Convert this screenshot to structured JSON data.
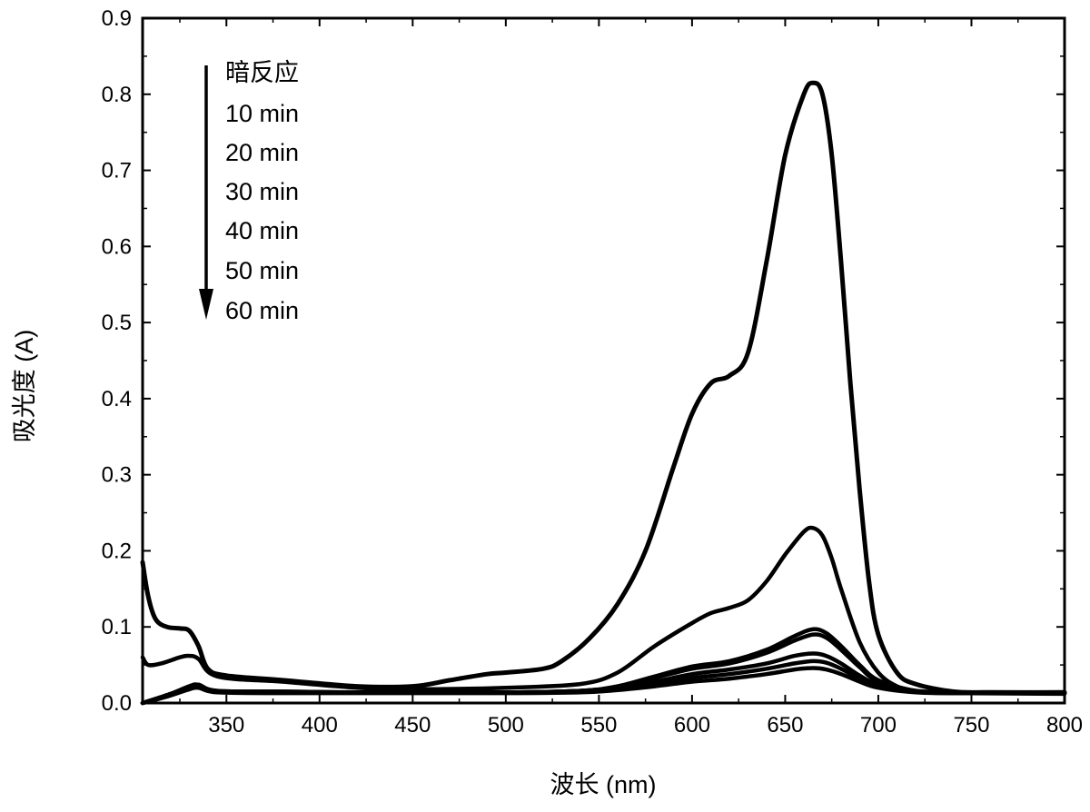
{
  "chart_data": {
    "type": "line",
    "title": "",
    "xlabel": "波长 (nm)",
    "ylabel": "吸光度 (A)",
    "xlim": [
      305,
      800
    ],
    "ylim": [
      0,
      0.9
    ],
    "x_ticks": [
      350,
      400,
      450,
      500,
      550,
      600,
      650,
      700,
      750,
      800
    ],
    "x_tick_labels": [
      "350",
      "400",
      "450",
      "500",
      "550",
      "600",
      "650",
      "700",
      "750",
      "800"
    ],
    "y_ticks": [
      0.0,
      0.1,
      0.2,
      0.3,
      0.4,
      0.5,
      0.6,
      0.7,
      0.8,
      0.9
    ],
    "y_tick_labels": [
      "0.0",
      "0.1",
      "0.2",
      "0.3",
      "0.4",
      "0.5",
      "0.6",
      "0.7",
      "0.8",
      "0.9"
    ],
    "grid": false,
    "legend": {
      "placement": "top-left",
      "arrow": "down",
      "entries": [
        "暗反应",
        "10 min",
        "20 min",
        "30 min",
        "40 min",
        "50 min",
        "60 min"
      ]
    },
    "line_color": "#000000",
    "series": [
      {
        "name": "暗反应",
        "x": [
          305,
          308,
          312,
          318,
          325,
          330,
          335,
          340,
          350,
          380,
          420,
          450,
          470,
          490,
          500,
          520,
          530,
          545,
          560,
          575,
          590,
          600,
          610,
          620,
          630,
          640,
          650,
          660,
          665,
          670,
          675,
          680,
          685,
          690,
          695,
          700,
          710,
          720,
          740,
          760,
          800
        ],
        "y": [
          0.185,
          0.14,
          0.11,
          0.1,
          0.098,
          0.095,
          0.075,
          0.045,
          0.036,
          0.03,
          0.022,
          0.022,
          0.03,
          0.038,
          0.04,
          0.045,
          0.055,
          0.085,
          0.13,
          0.2,
          0.31,
          0.38,
          0.42,
          0.43,
          0.46,
          0.58,
          0.72,
          0.8,
          0.815,
          0.8,
          0.72,
          0.58,
          0.42,
          0.28,
          0.16,
          0.09,
          0.04,
          0.025,
          0.015,
          0.014,
          0.014
        ]
      },
      {
        "name": "10 min",
        "x": [
          305,
          308,
          315,
          325,
          330,
          335,
          345,
          380,
          420,
          450,
          500,
          540,
          560,
          580,
          600,
          610,
          620,
          630,
          640,
          650,
          660,
          665,
          670,
          675,
          680,
          690,
          700,
          710,
          720,
          740,
          760,
          800
        ],
        "y": [
          0.06,
          0.05,
          0.052,
          0.06,
          0.062,
          0.058,
          0.035,
          0.028,
          0.02,
          0.018,
          0.02,
          0.025,
          0.04,
          0.075,
          0.105,
          0.118,
          0.125,
          0.135,
          0.16,
          0.195,
          0.225,
          0.23,
          0.22,
          0.19,
          0.15,
          0.08,
          0.04,
          0.022,
          0.016,
          0.014,
          0.013,
          0.013
        ]
      },
      {
        "name": "20 min",
        "x": [
          305,
          320,
          330,
          335,
          345,
          380,
          420,
          500,
          540,
          560,
          580,
          600,
          620,
          640,
          655,
          665,
          672,
          680,
          690,
          700,
          720,
          740,
          800
        ],
        "y": [
          0.0,
          0.012,
          0.022,
          0.024,
          0.016,
          0.015,
          0.014,
          0.014,
          0.016,
          0.022,
          0.035,
          0.048,
          0.055,
          0.07,
          0.088,
          0.097,
          0.092,
          0.075,
          0.05,
          0.03,
          0.016,
          0.014,
          0.013
        ]
      },
      {
        "name": "30 min",
        "x": [
          305,
          320,
          330,
          335,
          345,
          380,
          420,
          500,
          540,
          560,
          580,
          600,
          620,
          640,
          655,
          665,
          672,
          680,
          690,
          700,
          720,
          740,
          800
        ],
        "y": [
          0.0,
          0.012,
          0.022,
          0.024,
          0.016,
          0.015,
          0.014,
          0.014,
          0.016,
          0.021,
          0.033,
          0.045,
          0.052,
          0.066,
          0.082,
          0.09,
          0.086,
          0.07,
          0.047,
          0.028,
          0.016,
          0.014,
          0.013
        ]
      },
      {
        "name": "40 min",
        "x": [
          305,
          320,
          330,
          335,
          345,
          380,
          420,
          500,
          540,
          560,
          580,
          600,
          620,
          640,
          655,
          665,
          672,
          680,
          690,
          700,
          720,
          740,
          800
        ],
        "y": [
          0.0,
          0.01,
          0.02,
          0.022,
          0.015,
          0.014,
          0.014,
          0.014,
          0.016,
          0.02,
          0.028,
          0.038,
          0.044,
          0.052,
          0.062,
          0.065,
          0.062,
          0.052,
          0.036,
          0.024,
          0.015,
          0.013,
          0.013
        ]
      },
      {
        "name": "50 min",
        "x": [
          305,
          320,
          330,
          335,
          345,
          380,
          420,
          500,
          540,
          560,
          580,
          600,
          620,
          640,
          655,
          665,
          672,
          680,
          690,
          700,
          720,
          740,
          800
        ],
        "y": [
          0.0,
          0.01,
          0.02,
          0.022,
          0.015,
          0.014,
          0.014,
          0.014,
          0.015,
          0.019,
          0.026,
          0.033,
          0.038,
          0.045,
          0.052,
          0.055,
          0.053,
          0.045,
          0.032,
          0.022,
          0.015,
          0.013,
          0.013
        ]
      },
      {
        "name": "60 min",
        "x": [
          305,
          320,
          330,
          335,
          345,
          380,
          420,
          500,
          540,
          560,
          580,
          600,
          620,
          640,
          655,
          665,
          672,
          680,
          690,
          700,
          720,
          740,
          800
        ],
        "y": [
          0.0,
          0.01,
          0.018,
          0.02,
          0.014,
          0.013,
          0.013,
          0.013,
          0.014,
          0.017,
          0.022,
          0.028,
          0.032,
          0.038,
          0.044,
          0.046,
          0.044,
          0.038,
          0.028,
          0.02,
          0.014,
          0.013,
          0.012
        ]
      }
    ]
  }
}
